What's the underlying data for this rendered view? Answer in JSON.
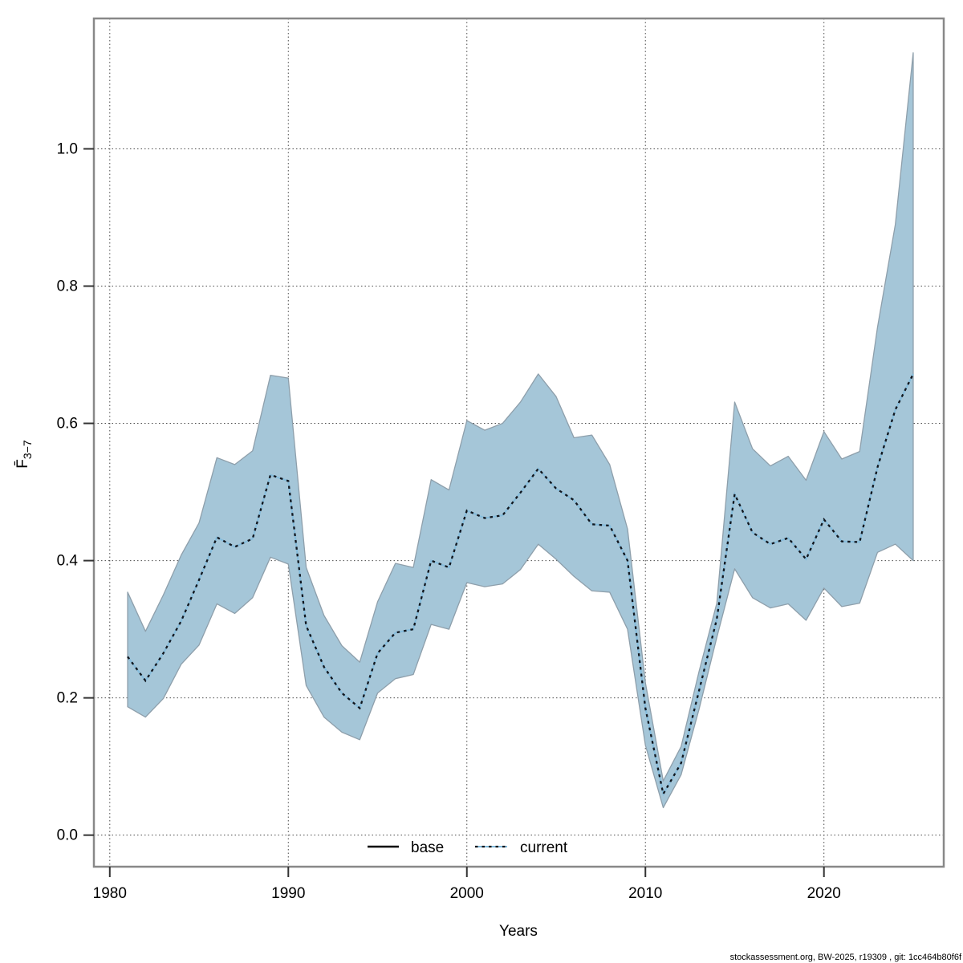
{
  "chart_data": {
    "type": "area",
    "title": "",
    "xlabel": "Years",
    "ylabel": "F̄3−7",
    "ylabel_main": "F̄",
    "ylabel_sub": "3−7",
    "grid": "dotted",
    "legend_position": "bottom-center-inside",
    "xlim": [
      1979.11,
      2026.71
    ],
    "ylim": [
      -0.046,
      1.19
    ],
    "xticks": [
      "1980",
      "1990",
      "2000",
      "2010",
      "2020"
    ],
    "xtick_values": [
      1980,
      1990,
      2000,
      2010,
      2020
    ],
    "yticks": [
      "0.0",
      "0.2",
      "0.4",
      "0.6",
      "0.8",
      "1.0"
    ],
    "ytick_values": [
      0.0,
      0.2,
      0.4,
      0.6,
      0.8,
      1.0
    ],
    "x": [
      1981,
      1982,
      1983,
      1984,
      1985,
      1986,
      1987,
      1988,
      1989,
      1990,
      1991,
      1992,
      1993,
      1994,
      1995,
      1996,
      1997,
      1998,
      1999,
      2000,
      2001,
      2002,
      2003,
      2004,
      2005,
      2006,
      2007,
      2008,
      2009,
      2010,
      2011,
      2012,
      2013,
      2014,
      2015,
      2016,
      2017,
      2018,
      2019,
      2020,
      2021,
      2022,
      2023,
      2024,
      2025
    ],
    "series": [
      {
        "name": "current",
        "style": "dotted",
        "values": [
          0.26,
          0.225,
          0.265,
          0.312,
          0.372,
          0.434,
          0.42,
          0.432,
          0.525,
          0.516,
          0.305,
          0.245,
          0.207,
          0.185,
          0.265,
          0.295,
          0.3,
          0.4,
          0.39,
          0.473,
          0.462,
          0.466,
          0.499,
          0.534,
          0.505,
          0.488,
          0.453,
          0.451,
          0.4,
          0.185,
          0.06,
          0.105,
          0.21,
          0.315,
          0.497,
          0.441,
          0.424,
          0.433,
          0.402,
          0.46,
          0.428,
          0.427,
          0.536,
          0.62,
          0.672
        ]
      }
    ],
    "band": {
      "name": "confidence-interval-current",
      "lower": [
        0.187,
        0.172,
        0.199,
        0.249,
        0.277,
        0.337,
        0.323,
        0.346,
        0.405,
        0.395,
        0.218,
        0.172,
        0.15,
        0.139,
        0.207,
        0.228,
        0.234,
        0.307,
        0.3,
        0.368,
        0.362,
        0.366,
        0.387,
        0.424,
        0.402,
        0.377,
        0.356,
        0.354,
        0.3,
        0.131,
        0.04,
        0.088,
        0.183,
        0.288,
        0.388,
        0.346,
        0.331,
        0.337,
        0.313,
        0.36,
        0.333,
        0.338,
        0.412,
        0.424,
        0.4
      ],
      "upper": [
        0.354,
        0.297,
        0.35,
        0.408,
        0.455,
        0.55,
        0.54,
        0.56,
        0.67,
        0.666,
        0.39,
        0.32,
        0.276,
        0.252,
        0.34,
        0.396,
        0.39,
        0.518,
        0.503,
        0.604,
        0.59,
        0.6,
        0.631,
        0.672,
        0.639,
        0.579,
        0.583,
        0.54,
        0.446,
        0.222,
        0.079,
        0.129,
        0.238,
        0.338,
        0.631,
        0.563,
        0.538,
        0.552,
        0.517,
        0.588,
        0.548,
        0.559,
        0.74,
        0.89,
        1.14
      ]
    }
  },
  "legend": {
    "items": [
      {
        "label": "base",
        "line": "solid",
        "color": "#000000"
      },
      {
        "label": "current",
        "line": "dotted",
        "color": "#7fb9da"
      }
    ]
  },
  "footer": {
    "text": "stockassessment.org, BW-2025, r19309 , git: 1cc464b80f6f"
  },
  "colors": {
    "band_fill": "#a5c6d8",
    "band_edge": "#8e9fab",
    "current_dots": "#10161e",
    "current_underlay": "#85bcdc",
    "grid": "#4a4a4a",
    "border": "#888888",
    "tick": "#333333",
    "text": "#000000"
  }
}
